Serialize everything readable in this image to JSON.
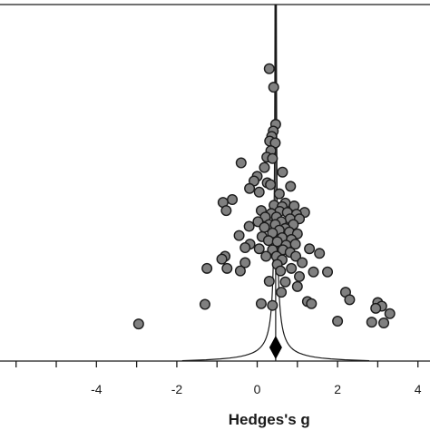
{
  "chart_data": {
    "type": "scatter",
    "title": "",
    "xlabel": "Hedges's g",
    "ylabel": "",
    "xlim": [
      -6.4,
      4.3
    ],
    "ylim": [
      0,
      1
    ],
    "xticks": [
      -4,
      -2,
      0,
      2,
      4
    ],
    "xtick_labels": [
      "-4",
      "-2",
      "0",
      "2",
      "4"
    ],
    "grid": false,
    "legend": "none",
    "colors": {
      "point_fill": "#808080",
      "point_stroke": "#1a1a1a",
      "line": "#1a1a1a",
      "diamond": "#000000"
    },
    "summary_effect": 0.46,
    "funnel_center": 0.46,
    "funnel_scale": 0.15,
    "points": [
      {
        "x": 0.3,
        "y": 0.82
      },
      {
        "x": 0.41,
        "y": 0.768
      },
      {
        "x": 0.46,
        "y": 0.664
      },
      {
        "x": 0.4,
        "y": 0.645
      },
      {
        "x": 0.36,
        "y": 0.63
      },
      {
        "x": 0.31,
        "y": 0.617
      },
      {
        "x": 0.45,
        "y": 0.612
      },
      {
        "x": 0.34,
        "y": 0.59
      },
      {
        "x": 0.24,
        "y": 0.572
      },
      {
        "x": 0.38,
        "y": 0.568
      },
      {
        "x": -0.4,
        "y": 0.556
      },
      {
        "x": 0.18,
        "y": 0.543
      },
      {
        "x": 0.63,
        "y": 0.53
      },
      {
        "x": 0.0,
        "y": 0.518
      },
      {
        "x": -0.08,
        "y": 0.505
      },
      {
        "x": 0.25,
        "y": 0.5
      },
      {
        "x": 0.33,
        "y": 0.495
      },
      {
        "x": 0.83,
        "y": 0.49
      },
      {
        "x": -0.19,
        "y": 0.484
      },
      {
        "x": 0.05,
        "y": 0.474
      },
      {
        "x": 0.55,
        "y": 0.469
      },
      {
        "x": -0.62,
        "y": 0.453
      },
      {
        "x": -0.85,
        "y": 0.445
      },
      {
        "x": 0.7,
        "y": 0.443
      },
      {
        "x": 0.42,
        "y": 0.437
      },
      {
        "x": 0.62,
        "y": 0.433
      },
      {
        "x": 0.92,
        "y": 0.435
      },
      {
        "x": -0.77,
        "y": 0.422
      },
      {
        "x": 0.1,
        "y": 0.422
      },
      {
        "x": 0.56,
        "y": 0.42
      },
      {
        "x": 0.75,
        "y": 0.417
      },
      {
        "x": 1.18,
        "y": 0.417
      },
      {
        "x": 0.35,
        "y": 0.414
      },
      {
        "x": 0.98,
        "y": 0.412
      },
      {
        "x": 0.2,
        "y": 0.404
      },
      {
        "x": 0.48,
        "y": 0.404
      },
      {
        "x": 0.82,
        "y": 0.399
      },
      {
        "x": 1.05,
        "y": 0.399
      },
      {
        "x": 0.02,
        "y": 0.391
      },
      {
        "x": 0.6,
        "y": 0.391
      },
      {
        "x": 0.3,
        "y": 0.383
      },
      {
        "x": 0.45,
        "y": 0.383
      },
      {
        "x": 0.9,
        "y": 0.383
      },
      {
        "x": -0.2,
        "y": 0.378
      },
      {
        "x": 0.18,
        "y": 0.375
      },
      {
        "x": 0.7,
        "y": 0.372
      },
      {
        "x": 0.55,
        "y": 0.367
      },
      {
        "x": 0.8,
        "y": 0.362
      },
      {
        "x": 0.38,
        "y": 0.359
      },
      {
        "x": 1.0,
        "y": 0.357
      },
      {
        "x": -0.45,
        "y": 0.352
      },
      {
        "x": 0.12,
        "y": 0.349
      },
      {
        "x": 0.62,
        "y": 0.346
      },
      {
        "x": 0.85,
        "y": 0.341
      },
      {
        "x": 0.28,
        "y": 0.338
      },
      {
        "x": 0.5,
        "y": 0.335
      },
      {
        "x": -0.18,
        "y": 0.328
      },
      {
        "x": 0.72,
        "y": 0.325
      },
      {
        "x": 0.95,
        "y": 0.328
      },
      {
        "x": -0.3,
        "y": 0.318
      },
      {
        "x": 0.05,
        "y": 0.315
      },
      {
        "x": 0.38,
        "y": 0.312
      },
      {
        "x": 0.64,
        "y": 0.312
      },
      {
        "x": 1.3,
        "y": 0.315
      },
      {
        "x": 0.82,
        "y": 0.305
      },
      {
        "x": 1.55,
        "y": 0.302
      },
      {
        "x": -0.8,
        "y": 0.294
      },
      {
        "x": 0.22,
        "y": 0.294
      },
      {
        "x": 0.48,
        "y": 0.294
      },
      {
        "x": 0.96,
        "y": 0.294
      },
      {
        "x": -0.88,
        "y": 0.286
      },
      {
        "x": 0.62,
        "y": 0.284
      },
      {
        "x": -0.3,
        "y": 0.276
      },
      {
        "x": 1.12,
        "y": 0.276
      },
      {
        "x": 0.5,
        "y": 0.271
      },
      {
        "x": -1.25,
        "y": 0.26
      },
      {
        "x": -0.75,
        "y": 0.26
      },
      {
        "x": 0.85,
        "y": 0.26
      },
      {
        "x": -0.42,
        "y": 0.253
      },
      {
        "x": 0.58,
        "y": 0.253
      },
      {
        "x": 1.4,
        "y": 0.25
      },
      {
        "x": 1.75,
        "y": 0.25
      },
      {
        "x": 1.05,
        "y": 0.237
      },
      {
        "x": 0.3,
        "y": 0.224
      },
      {
        "x": 0.7,
        "y": 0.222
      },
      {
        "x": 1.0,
        "y": 0.209
      },
      {
        "x": 0.6,
        "y": 0.193
      },
      {
        "x": 2.2,
        "y": 0.193
      },
      {
        "x": 2.3,
        "y": 0.172
      },
      {
        "x": 1.25,
        "y": 0.167
      },
      {
        "x": 0.1,
        "y": 0.161
      },
      {
        "x": 1.35,
        "y": 0.161
      },
      {
        "x": -1.3,
        "y": 0.159
      },
      {
        "x": 3.0,
        "y": 0.164
      },
      {
        "x": 3.1,
        "y": 0.154
      },
      {
        "x": 0.38,
        "y": 0.156
      },
      {
        "x": 2.95,
        "y": 0.148
      },
      {
        "x": 3.3,
        "y": 0.133
      },
      {
        "x": -2.95,
        "y": 0.104
      },
      {
        "x": 2.0,
        "y": 0.112
      },
      {
        "x": 2.85,
        "y": 0.109
      },
      {
        "x": 3.15,
        "y": 0.107
      }
    ]
  }
}
